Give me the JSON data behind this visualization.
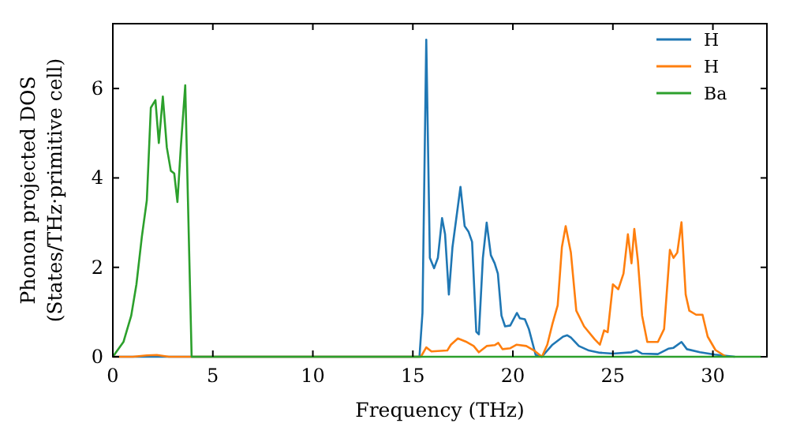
{
  "chart_data": {
    "type": "line",
    "xlabel": "Frequency (THz)",
    "ylabel": "Phonon projected DOS\n(States/THz·primitive cell)",
    "xlim": [
      0,
      32.7
    ],
    "ylim": [
      0,
      7.45
    ],
    "xticks": [
      0,
      5,
      10,
      15,
      20,
      25,
      30
    ],
    "yticks": [
      0,
      2,
      4,
      6
    ],
    "grid": false,
    "legend": "top right",
    "series": [
      {
        "name": "H",
        "color": "#1f77b4",
        "x": [
          0,
          15.2,
          15.33,
          15.48,
          15.67,
          15.85,
          16.06,
          16.25,
          16.46,
          16.61,
          16.8,
          16.98,
          17.38,
          17.59,
          17.78,
          17.96,
          18.17,
          18.3,
          18.5,
          18.69,
          18.9,
          19.09,
          19.25,
          19.43,
          19.61,
          19.87,
          20.2,
          20.35,
          20.6,
          20.8,
          21.14,
          21.45,
          21.98,
          22.51,
          22.72,
          22.9,
          23.3,
          23.8,
          24.35,
          25.0,
          25.93,
          26.19,
          26.46,
          27.25,
          27.77,
          28.03,
          28.43,
          28.7,
          29.35,
          30.1,
          31.1
        ],
        "values": [
          0,
          0,
          0,
          0.98,
          7.09,
          2.21,
          1.98,
          2.21,
          3.1,
          2.74,
          1.39,
          2.45,
          3.8,
          2.92,
          2.8,
          2.57,
          0.56,
          0.5,
          2.21,
          3.0,
          2.27,
          2.09,
          1.86,
          0.92,
          0.68,
          0.7,
          0.98,
          0.86,
          0.84,
          0.62,
          0.04,
          0,
          0.27,
          0.45,
          0.48,
          0.43,
          0.24,
          0.14,
          0.09,
          0.07,
          0.1,
          0.14,
          0.07,
          0.06,
          0.18,
          0.2,
          0.33,
          0.17,
          0.1,
          0.05,
          0
        ]
      },
      {
        "name": "H",
        "color": "#ff7f0e",
        "x": [
          0,
          1.0,
          1.7,
          2.2,
          2.8,
          15.4,
          15.67,
          15.93,
          16.72,
          16.9,
          17.25,
          17.64,
          18.04,
          18.3,
          18.69,
          19.09,
          19.27,
          19.48,
          19.87,
          20.19,
          20.67,
          21.06,
          21.45,
          21.72,
          21.98,
          22.24,
          22.45,
          22.64,
          22.9,
          23.17,
          23.56,
          24.09,
          24.35,
          24.56,
          24.74,
          25.0,
          25.27,
          25.53,
          25.75,
          25.93,
          26.07,
          26.25,
          26.46,
          26.72,
          27.25,
          27.56,
          27.85,
          28.03,
          28.22,
          28.43,
          28.64,
          28.82,
          29.16,
          29.48,
          29.74,
          30.13,
          30.66
        ],
        "values": [
          0,
          0,
          0.03,
          0.04,
          0,
          0,
          0.21,
          0.12,
          0.14,
          0.27,
          0.41,
          0.34,
          0.24,
          0.1,
          0.24,
          0.26,
          0.31,
          0.17,
          0.19,
          0.27,
          0.24,
          0.14,
          0,
          0.27,
          0.74,
          1.15,
          2.45,
          2.92,
          2.33,
          1.03,
          0.68,
          0.39,
          0.27,
          0.59,
          0.55,
          1.62,
          1.51,
          1.86,
          2.74,
          2.09,
          2.86,
          2.15,
          0.92,
          0.33,
          0.33,
          0.62,
          2.39,
          2.21,
          2.33,
          3.01,
          1.39,
          1.03,
          0.94,
          0.94,
          0.45,
          0.15,
          0
        ]
      },
      {
        "name": "Ba",
        "color": "#2ca02c",
        "x": [
          0,
          0.53,
          0.92,
          1.18,
          1.45,
          1.7,
          1.9,
          2.13,
          2.3,
          2.5,
          2.7,
          2.9,
          3.07,
          3.23,
          3.4,
          3.62,
          3.94,
          32.4
        ],
        "values": [
          0,
          0.33,
          0.92,
          1.62,
          2.68,
          3.5,
          5.57,
          5.74,
          4.78,
          5.82,
          4.68,
          4.16,
          4.1,
          3.46,
          4.7,
          6.07,
          0,
          0
        ]
      }
    ]
  }
}
